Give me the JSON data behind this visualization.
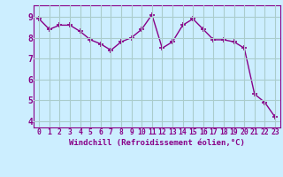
{
  "x": [
    0,
    1,
    2,
    3,
    4,
    5,
    6,
    7,
    8,
    9,
    10,
    11,
    12,
    13,
    14,
    15,
    16,
    17,
    18,
    19,
    20,
    21,
    22,
    23
  ],
  "y": [
    8.9,
    8.4,
    8.6,
    8.6,
    8.3,
    7.9,
    7.7,
    7.4,
    7.8,
    8.0,
    8.4,
    9.1,
    7.5,
    7.8,
    8.6,
    8.9,
    8.4,
    7.9,
    7.9,
    7.8,
    7.5,
    5.3,
    4.9,
    4.2
  ],
  "line_color": "#880088",
  "marker": "+",
  "markersize": 4,
  "markeredgewidth": 1.2,
  "linewidth": 1.0,
  "xlabel": "Windchill (Refroidissement éolien,°C)",
  "xlabel_fontsize": 6.5,
  "ylabel_ticks": [
    4,
    5,
    6,
    7,
    8,
    9
  ],
  "xtick_labels": [
    "0",
    "1",
    "2",
    "3",
    "4",
    "5",
    "6",
    "7",
    "8",
    "9",
    "10",
    "11",
    "12",
    "13",
    "14",
    "15",
    "16",
    "17",
    "18",
    "19",
    "20",
    "21",
    "22",
    "23"
  ],
  "ylim": [
    3.7,
    9.55
  ],
  "xlim": [
    -0.5,
    23.5
  ],
  "bg_color": "#cceeff",
  "grid_color": "#aacccc",
  "tick_color": "#880088",
  "label_fontsize": 5.8
}
